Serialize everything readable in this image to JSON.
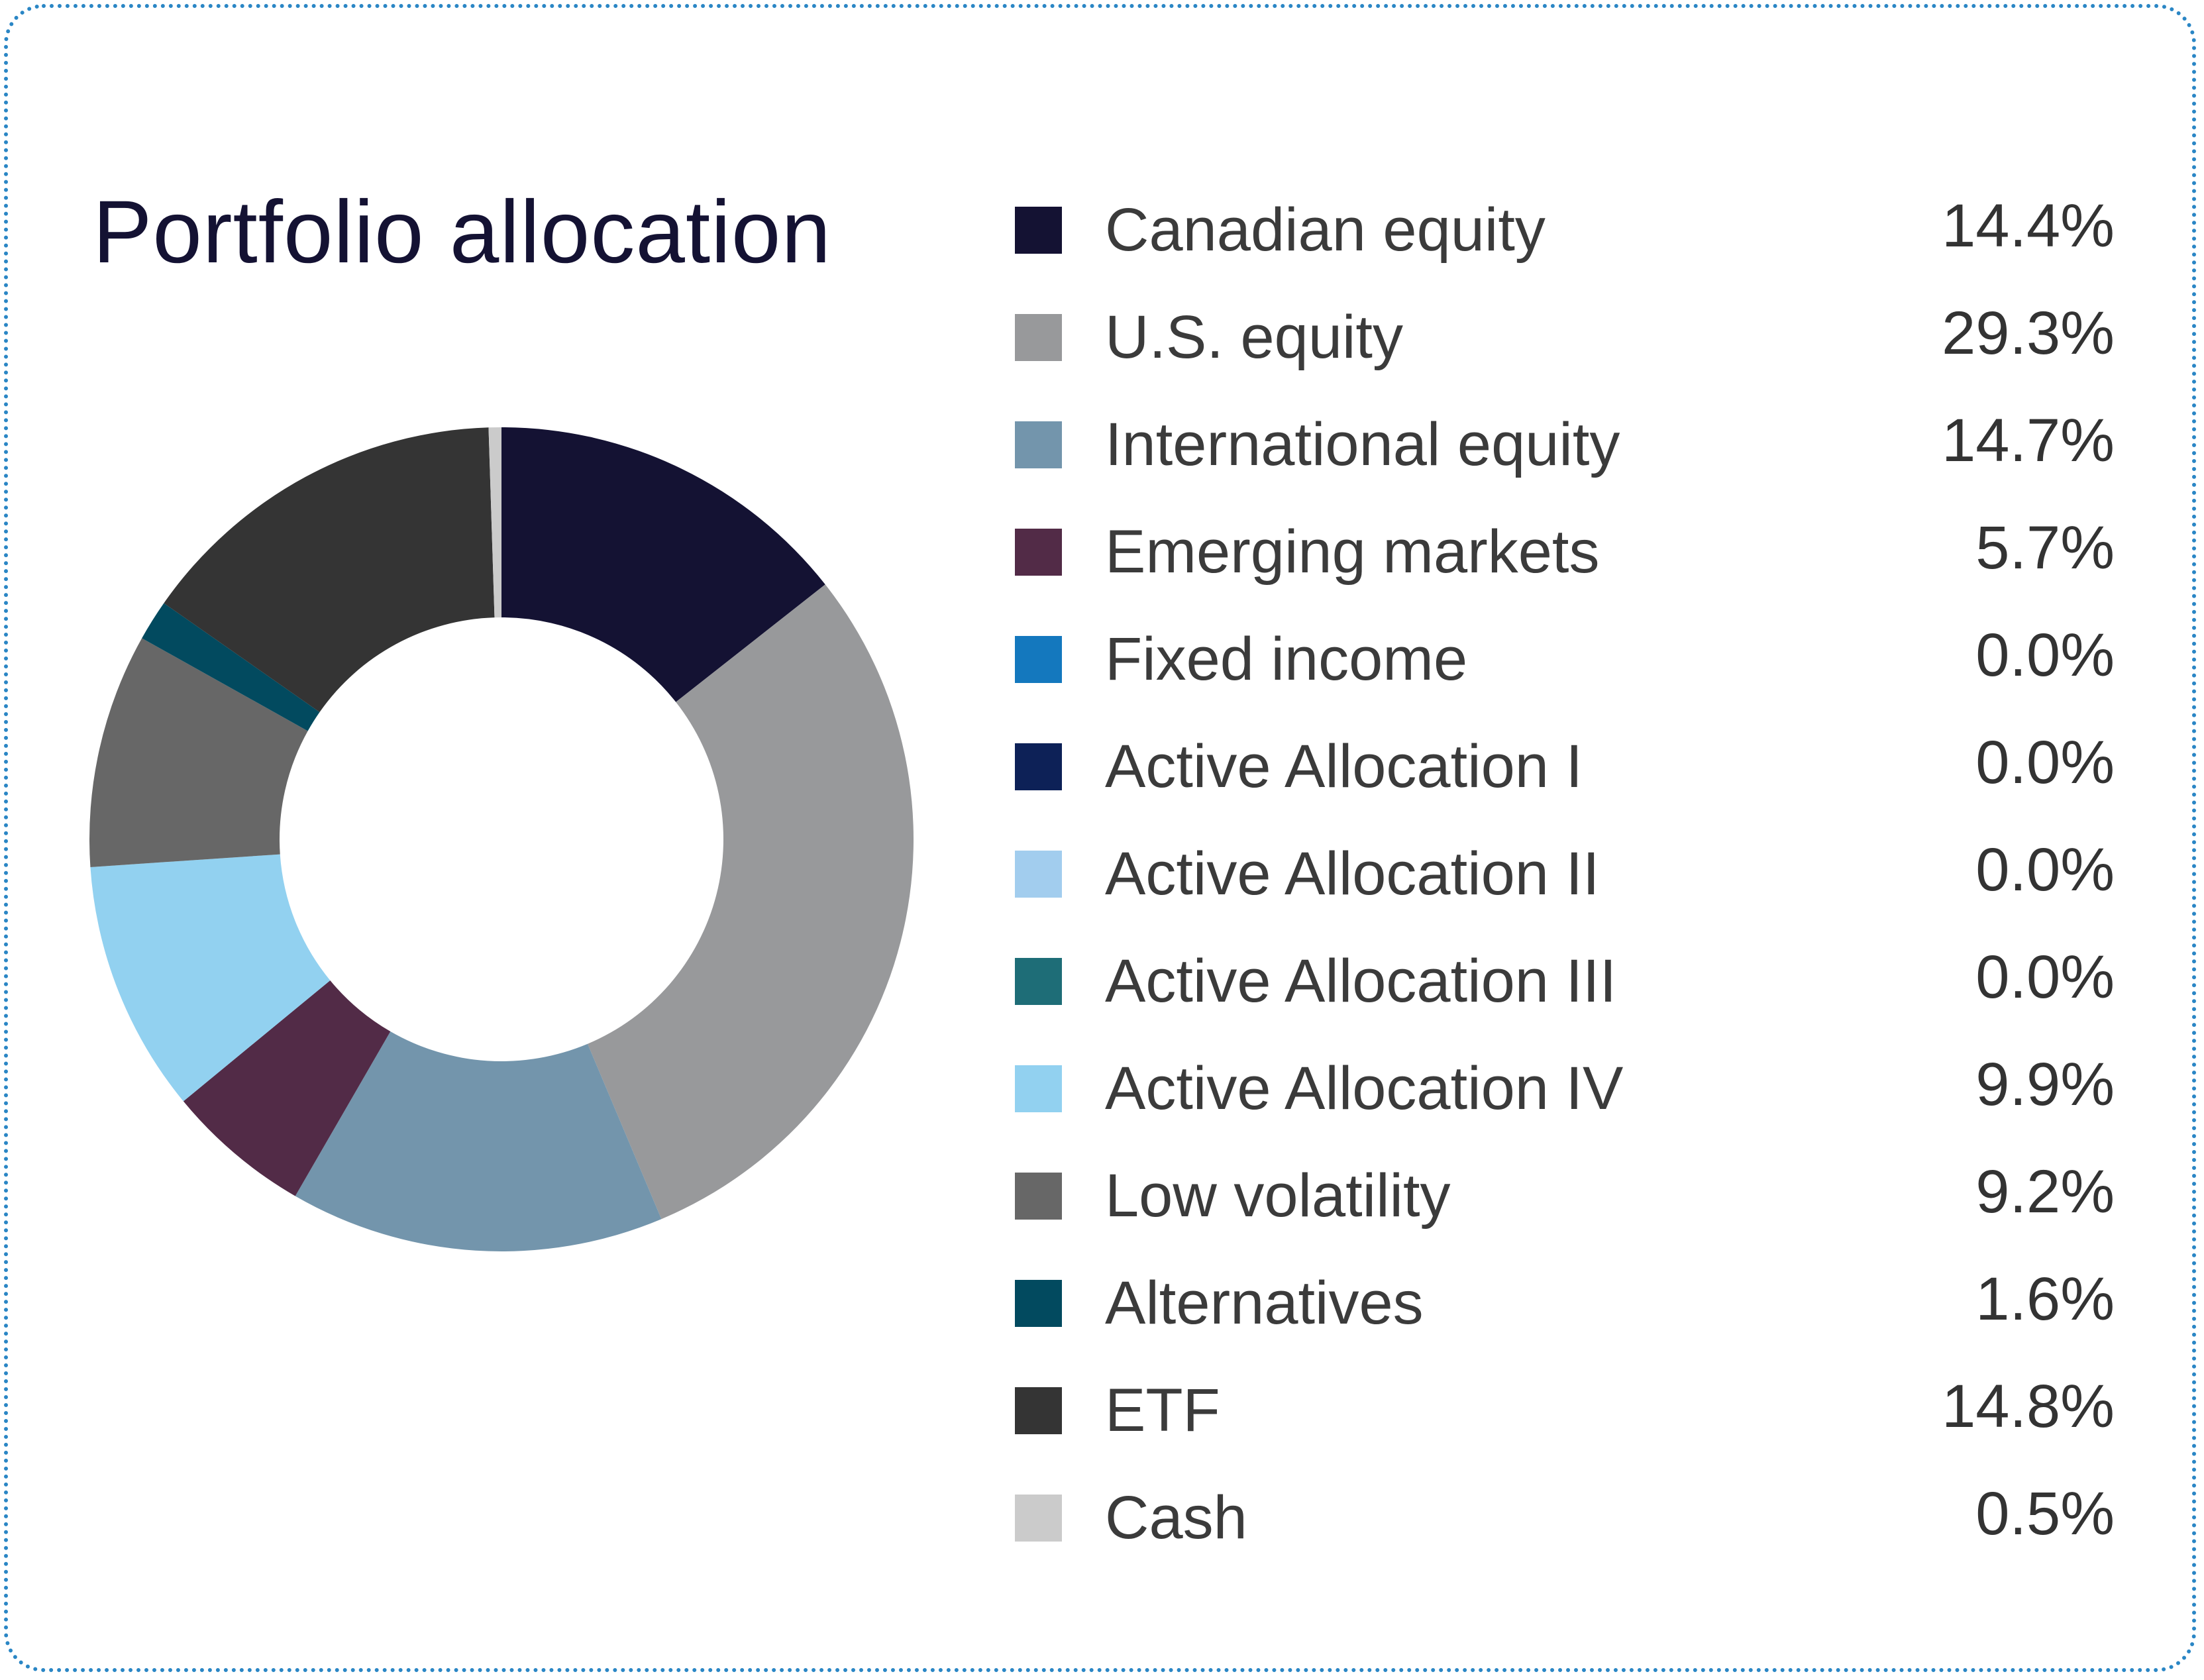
{
  "chart_data": {
    "type": "pie",
    "title": "Portfolio allocation",
    "unit": "%",
    "categories": [
      "Canadian equity",
      "U.S. equity",
      "International equity",
      "Emerging markets",
      "Fixed income",
      "Active Allocation I",
      "Active Allocation II",
      "Active Allocation III",
      "Active Allocation IV",
      "Low volatility",
      "Alternatives",
      "ETF",
      "Cash"
    ],
    "values": [
      14.4,
      29.3,
      14.7,
      5.7,
      0.0,
      0.0,
      0.0,
      0.0,
      9.9,
      9.2,
      1.6,
      14.8,
      0.5
    ],
    "value_labels": [
      "14.4%",
      "29.3%",
      "14.7%",
      "5.7%",
      "0.0%",
      "0.0%",
      "0.0%",
      "0.0%",
      "9.9%",
      "9.2%",
      "1.6%",
      "14.8%",
      "0.5%"
    ],
    "colors": [
      "#141233",
      "#98999b",
      "#7395ac",
      "#522b47",
      "#1478be",
      "#0d2157",
      "#a2cdee",
      "#1e6d77",
      "#92d1f0",
      "#676767",
      "#024a5f",
      "#343434",
      "#cbcbcb"
    ],
    "donut": true,
    "start_angle_deg": 0,
    "direction": "clockwise",
    "legend_position": "right"
  }
}
